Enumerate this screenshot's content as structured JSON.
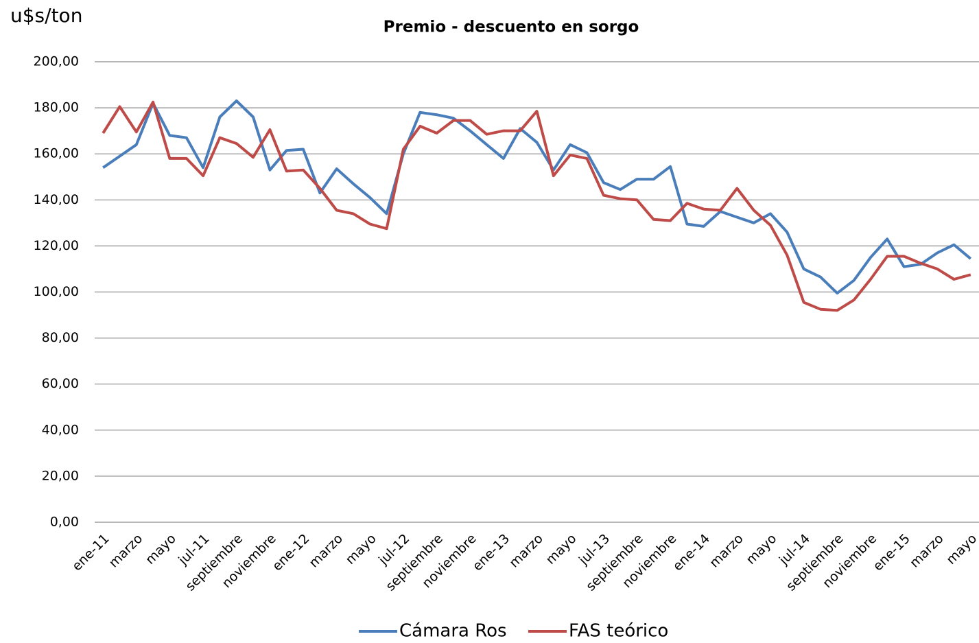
{
  "chart_data": {
    "type": "line",
    "title": "Premio - descuento en sorgo",
    "y_label": "u$s/ton",
    "categories": [
      "ene-11",
      null,
      "marzo",
      null,
      "mayo",
      null,
      "jul-11",
      null,
      "septiembre",
      null,
      "noviembre",
      null,
      "ene-12",
      null,
      "marzo",
      null,
      "mayo",
      null,
      "jul-12",
      null,
      "septiembre",
      null,
      "noviembre",
      null,
      "ene-13",
      null,
      "marzo",
      null,
      "mayo",
      null,
      "jul-13",
      null,
      "septiembre",
      null,
      "noviembre",
      null,
      "ene-14",
      null,
      "marzo",
      null,
      "mayo",
      null,
      "jul-14",
      null,
      "septiembre",
      null,
      "noviembre",
      null,
      "ene-15",
      null,
      "marzo",
      null,
      "mayo"
    ],
    "series": [
      {
        "name": "Cámara Ros",
        "color": "#4a7ebb",
        "values": [
          154,
          159,
          164,
          182,
          168,
          167,
          154,
          176,
          183,
          176,
          153,
          161.5,
          162,
          143,
          153.5,
          147,
          141,
          134,
          160,
          178,
          177,
          175.5,
          170,
          164,
          158,
          171,
          165,
          153,
          164,
          160.5,
          147.5,
          144.5,
          149,
          149,
          154.5,
          129.5,
          128.5,
          135,
          132.5,
          130,
          134,
          126,
          110,
          106.5,
          99.5,
          105,
          115,
          123,
          111,
          112,
          117,
          120.5,
          114.5
        ]
      },
      {
        "name": "FAS teórico",
        "color": "#be4b48",
        "values": [
          169,
          180.5,
          169.5,
          182.5,
          158,
          158,
          150.5,
          167,
          164.5,
          158.5,
          170.5,
          152.5,
          153,
          145,
          135.5,
          134,
          129.5,
          127.5,
          162,
          172,
          169,
          174.5,
          174.5,
          168.5,
          170,
          170,
          178.5,
          150.5,
          159.5,
          158,
          142,
          140.5,
          140,
          131.5,
          131,
          138.5,
          136,
          135.5,
          145,
          135.5,
          129,
          116,
          95.5,
          92.5,
          92,
          96.5,
          105.5,
          115.5,
          115.5,
          112.5,
          110,
          105.5,
          107.5
        ]
      }
    ],
    "ylim": [
      0,
      200
    ],
    "yticks": [
      {
        "value": 0,
        "label": "0,00"
      },
      {
        "value": 20,
        "label": "20,00"
      },
      {
        "value": 40,
        "label": "40,00"
      },
      {
        "value": 60,
        "label": "60,00"
      },
      {
        "value": 80,
        "label": "80,00"
      },
      {
        "value": 100,
        "label": "100,00"
      },
      {
        "value": 120,
        "label": "120,00"
      },
      {
        "value": 140,
        "label": "140,00"
      },
      {
        "value": 160,
        "label": "160,00"
      },
      {
        "value": 180,
        "label": "180,00"
      },
      {
        "value": 200,
        "label": "200,00"
      }
    ],
    "grid": true,
    "legend": "bottom"
  }
}
